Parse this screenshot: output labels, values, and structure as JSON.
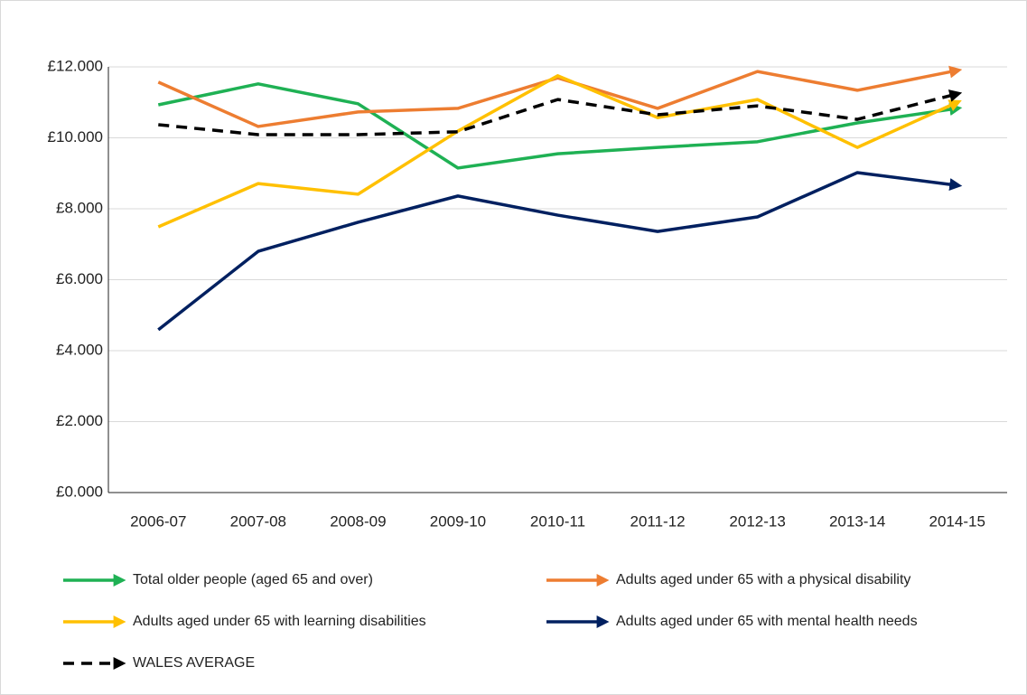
{
  "chart_data": {
    "type": "line",
    "categories": [
      "2006-07",
      "2007-08",
      "2008-09",
      "2009-10",
      "2010-11",
      "2011-12",
      "2012-13",
      "2013-14",
      "2014-15"
    ],
    "series": [
      {
        "name": "Total older people (aged 65 and over)",
        "color": "#1fb154",
        "dashed": false,
        "values": [
          10.93,
          11.52,
          10.96,
          9.15,
          9.55,
          9.73,
          9.89,
          10.42,
          10.83
        ]
      },
      {
        "name": "Adults aged under 65 with a physical disability",
        "color": "#ed7d31",
        "dashed": false,
        "values": [
          11.57,
          10.32,
          10.73,
          10.83,
          11.69,
          10.83,
          11.87,
          11.34,
          11.9
        ]
      },
      {
        "name": "Adults aged under 65 with learning disabilities",
        "color": "#ffc000",
        "dashed": false,
        "values": [
          7.49,
          8.71,
          8.41,
          10.19,
          11.75,
          10.57,
          11.08,
          9.73,
          11.0
        ]
      },
      {
        "name": "Adults aged under 65 with mental health needs",
        "color": "#002060",
        "dashed": false,
        "values": [
          4.59,
          6.8,
          7.62,
          8.36,
          7.82,
          7.36,
          7.77,
          9.02,
          8.66
        ]
      },
      {
        "name": "WALES AVERAGE",
        "color": "#000000",
        "dashed": true,
        "values": [
          10.37,
          10.09,
          10.09,
          10.17,
          11.08,
          10.65,
          10.9,
          10.52,
          11.24
        ]
      }
    ],
    "ylim": [
      0,
      12
    ],
    "yticks": [
      {
        "value": 0,
        "label": "£0.000"
      },
      {
        "value": 2,
        "label": "£2.000"
      },
      {
        "value": 4,
        "label": "£4.000"
      },
      {
        "value": 6,
        "label": "£6.000"
      },
      {
        "value": 8,
        "label": "£8.000"
      },
      {
        "value": 10,
        "label": "£10.000"
      },
      {
        "value": 12,
        "label": "£12.000"
      }
    ],
    "grid": true
  }
}
